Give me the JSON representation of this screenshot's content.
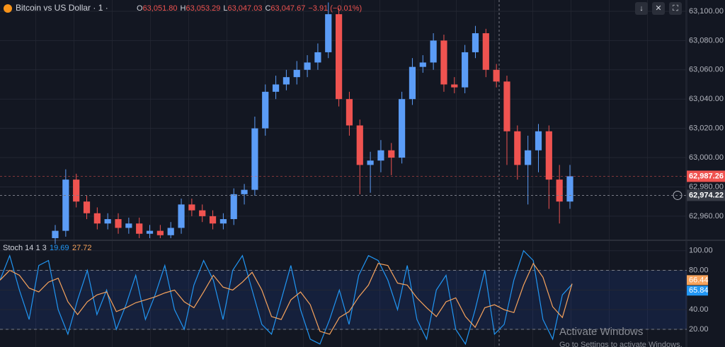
{
  "header": {
    "symbol": "Bitcoin vs US Dollar · 1 ·",
    "ohlc": [
      {
        "key": "O",
        "value": "63,051.80"
      },
      {
        "key": "H",
        "value": "63,053.29"
      },
      {
        "key": "L",
        "value": "63,047.03"
      },
      {
        "key": "C",
        "value": "63,047.67"
      }
    ],
    "change": "−3.91 (−0.01%)"
  },
  "chart_data": [
    {
      "type": "candlestick",
      "up_color": "#5b9cf6",
      "down_color": "#ef5350",
      "ylim": [
        62944.5,
        63107.7
      ],
      "yticks": [
        {
          "value": 62960,
          "label": "62,960.00"
        },
        {
          "value": 62980,
          "label": "62,980.00"
        },
        {
          "value": 63000,
          "label": "63,000.00"
        },
        {
          "value": 63020,
          "label": "63,020.00"
        },
        {
          "value": 63040,
          "label": "63,040.00"
        },
        {
          "value": 63060,
          "label": "63,060.00"
        },
        {
          "value": 63080,
          "label": "63,080.00"
        },
        {
          "value": 63100,
          "label": "63,100.00"
        }
      ],
      "grid": true,
      "last_price": {
        "value": 62987.26,
        "label": "62,987.26"
      },
      "crosshair_price": {
        "value": 62974.22,
        "label": "62,974.22"
      },
      "candles": [
        {
          "open": 62945,
          "high": 62954,
          "low": 62941,
          "close": 62950
        },
        {
          "open": 62950,
          "high": 62992,
          "low": 62946,
          "close": 62985
        },
        {
          "open": 62985,
          "high": 62989,
          "low": 62966,
          "close": 62970
        },
        {
          "open": 62970,
          "high": 62974,
          "low": 62958,
          "close": 62962
        },
        {
          "open": 62962,
          "high": 62966,
          "low": 62951,
          "close": 62955
        },
        {
          "open": 62955,
          "high": 62962,
          "low": 62951,
          "close": 62958
        },
        {
          "open": 62958,
          "high": 62962,
          "low": 62948,
          "close": 62952
        },
        {
          "open": 62952,
          "high": 62959,
          "low": 62948,
          "close": 62955
        },
        {
          "open": 62955,
          "high": 62959,
          "low": 62945,
          "close": 62948
        },
        {
          "open": 62948,
          "high": 62954,
          "low": 62945,
          "close": 62950
        },
        {
          "open": 62950,
          "high": 62954,
          "low": 62945,
          "close": 62947
        },
        {
          "open": 62947,
          "high": 62956,
          "low": 62945,
          "close": 62952
        },
        {
          "open": 62952,
          "high": 62972,
          "low": 62948,
          "close": 62968
        },
        {
          "open": 62968,
          "high": 62972,
          "low": 62960,
          "close": 62964
        },
        {
          "open": 62964,
          "high": 62968,
          "low": 62956,
          "close": 62960
        },
        {
          "open": 62960,
          "high": 62964,
          "low": 62951,
          "close": 62955
        },
        {
          "open": 62955,
          "high": 62962,
          "low": 62951,
          "close": 62958
        },
        {
          "open": 62958,
          "high": 62979,
          "low": 62954,
          "close": 62975
        },
        {
          "open": 62975,
          "high": 62982,
          "low": 62968,
          "close": 62978
        },
        {
          "open": 62978,
          "high": 63028,
          "low": 62974,
          "close": 63020
        },
        {
          "open": 63020,
          "high": 63050,
          "low": 63015,
          "close": 63045
        },
        {
          "open": 63045,
          "high": 63056,
          "low": 63040,
          "close": 63050
        },
        {
          "open": 63050,
          "high": 63060,
          "low": 63046,
          "close": 63055
        },
        {
          "open": 63055,
          "high": 63066,
          "low": 63050,
          "close": 63060
        },
        {
          "open": 63060,
          "high": 63070,
          "low": 63055,
          "close": 63065
        },
        {
          "open": 63065,
          "high": 63078,
          "low": 63060,
          "close": 63072
        },
        {
          "open": 63072,
          "high": 63106,
          "low": 63068,
          "close": 63098
        },
        {
          "open": 63098,
          "high": 63102,
          "low": 63035,
          "close": 63040
        },
        {
          "open": 63040,
          "high": 63045,
          "low": 63015,
          "close": 63022
        },
        {
          "open": 63022,
          "high": 63026,
          "low": 62975,
          "close": 62995
        },
        {
          "open": 62995,
          "high": 63004,
          "low": 62976,
          "close": 62998
        },
        {
          "open": 62998,
          "high": 63012,
          "low": 62990,
          "close": 63005
        },
        {
          "open": 63005,
          "high": 63010,
          "low": 62988,
          "close": 63000
        },
        {
          "open": 63000,
          "high": 63045,
          "low": 62996,
          "close": 63040
        },
        {
          "open": 63040,
          "high": 63068,
          "low": 63036,
          "close": 63062
        },
        {
          "open": 63062,
          "high": 63070,
          "low": 63058,
          "close": 63065
        },
        {
          "open": 63065,
          "high": 63085,
          "low": 63060,
          "close": 63080
        },
        {
          "open": 63080,
          "high": 63084,
          "low": 63045,
          "close": 63050
        },
        {
          "open": 63050,
          "high": 63055,
          "low": 63044,
          "close": 63048
        },
        {
          "open": 63048,
          "high": 63077,
          "low": 63044,
          "close": 63072
        },
        {
          "open": 63072,
          "high": 63090,
          "low": 63068,
          "close": 63085
        },
        {
          "open": 63085,
          "high": 63088,
          "low": 63055,
          "close": 63060
        },
        {
          "open": 63060,
          "high": 63064,
          "low": 63048,
          "close": 63052
        },
        {
          "open": 63052,
          "high": 63056,
          "low": 62995,
          "close": 63018
        },
        {
          "open": 63018,
          "high": 63022,
          "low": 62985,
          "close": 62995
        },
        {
          "open": 62995,
          "high": 63015,
          "low": 62968,
          "close": 63005
        },
        {
          "open": 63005,
          "high": 63023,
          "low": 62990,
          "close": 63018
        },
        {
          "open": 63018,
          "high": 63022,
          "low": 62965,
          "close": 62985
        },
        {
          "open": 62985,
          "high": 62995,
          "low": 62955,
          "close": 62970
        },
        {
          "open": 62970,
          "high": 62995,
          "low": 62965,
          "close": 62987.26
        }
      ]
    },
    {
      "type": "line",
      "title": "Stoch 14 1 3",
      "readouts": [
        19.69,
        27.72
      ],
      "ylim": [
        2,
        107
      ],
      "yticks": [
        {
          "value": 20,
          "label": "20.00"
        },
        {
          "value": 40,
          "label": "40.00"
        },
        {
          "value": 60,
          "label": "60.00"
        },
        {
          "value": 80,
          "label": "80.00"
        },
        {
          "value": 100,
          "label": "100.00"
        }
      ],
      "band": [
        20,
        80
      ],
      "band_color": "#2962ff",
      "series": [
        {
          "color": "#2196f3",
          "values": [
            70,
            95,
            60,
            30,
            85,
            90,
            40,
            15,
            50,
            80,
            35,
            60,
            20,
            45,
            75,
            30,
            55,
            85,
            40,
            20,
            65,
            90,
            70,
            30,
            80,
            95,
            60,
            25,
            15,
            50,
            85,
            40,
            10,
            5,
            30,
            60,
            25,
            75,
            95,
            90,
            70,
            40,
            85,
            30,
            10,
            60,
            75,
            20,
            5,
            40,
            80,
            15,
            25,
            70,
            100,
            90,
            30,
            10,
            55,
            65.84
          ]
        },
        {
          "color": "#f7a35c",
          "values": [
            70,
            80,
            75,
            62,
            58,
            68,
            72,
            48,
            35,
            48,
            55,
            58,
            38,
            42,
            47,
            50,
            53,
            57,
            60,
            48,
            42,
            58,
            75,
            63,
            60,
            68,
            78,
            60,
            33,
            30,
            50,
            58,
            45,
            18,
            15,
            32,
            38,
            53,
            65,
            87,
            85,
            67,
            65,
            52,
            42,
            33,
            48,
            52,
            33,
            22,
            42,
            45,
            40,
            37,
            65,
            87,
            73,
            43,
            32,
            66.44
          ]
        }
      ]
    }
  ],
  "watermark": {
    "title": "Activate Windows",
    "subtitle": "Go to Settings to activate Windows."
  }
}
